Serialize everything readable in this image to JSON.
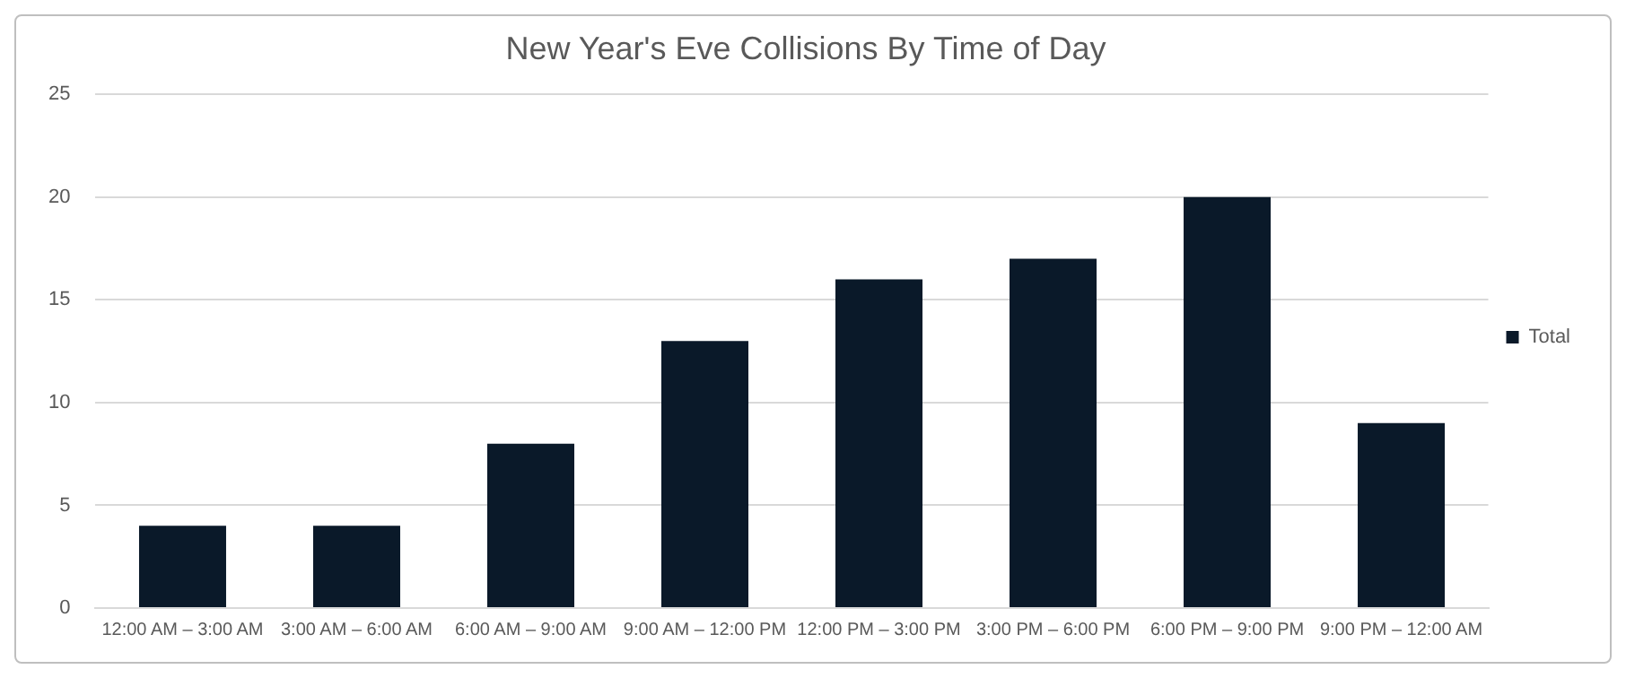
{
  "chart_data": {
    "type": "bar",
    "title": "New Year's Eve Collisions By Time of Day",
    "categories": [
      "12:00 AM – 3:00 AM",
      "3:00 AM – 6:00 AM",
      "6:00 AM – 9:00 AM",
      "9:00 AM – 12:00 PM",
      "12:00 PM – 3:00 PM",
      "3:00 PM – 6:00 PM",
      "6:00 PM – 9:00 PM",
      "9:00 PM – 12:00 AM"
    ],
    "series": [
      {
        "name": "Total",
        "color": "#0a1929",
        "values": [
          4,
          4,
          8,
          13,
          16,
          17,
          20,
          9
        ]
      }
    ],
    "ylim": [
      0,
      25
    ],
    "yticks": [
      0,
      5,
      10,
      15,
      20,
      25
    ],
    "grid": "y",
    "legend": "right"
  }
}
